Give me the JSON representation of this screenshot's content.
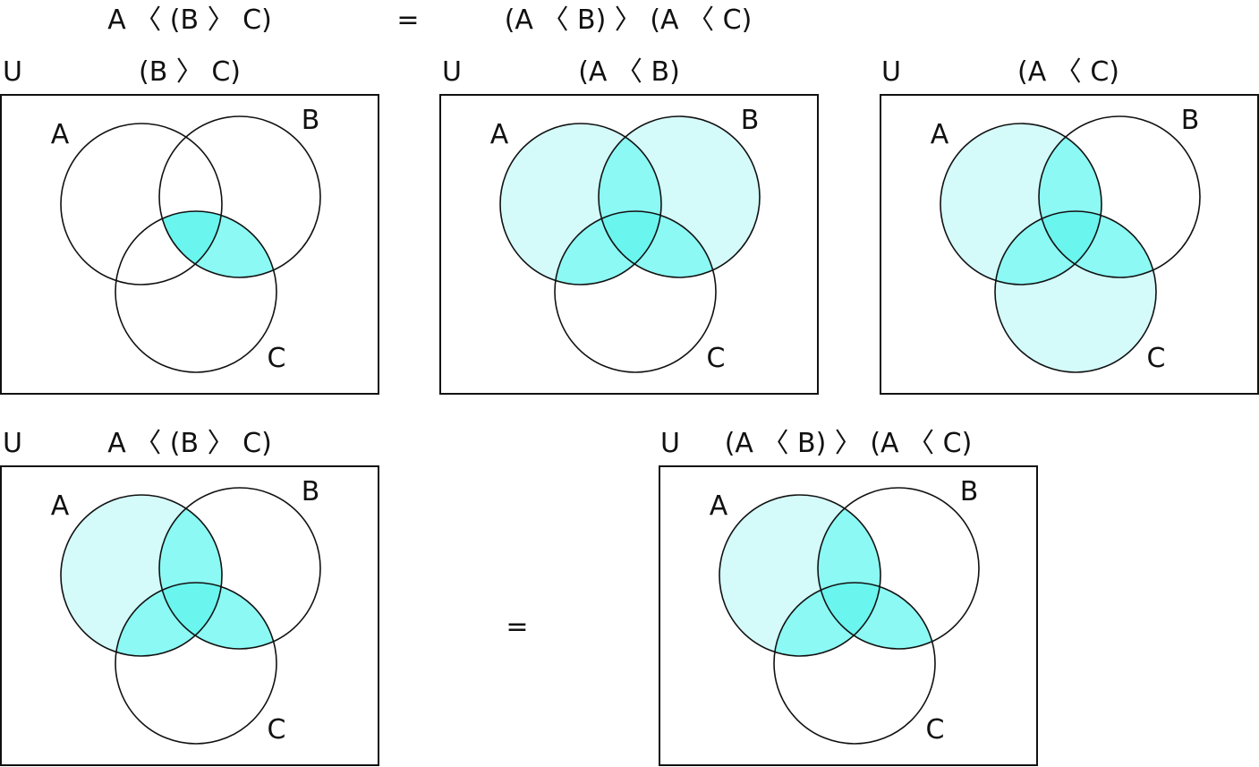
{
  "heading": {
    "left": "A 〈 (B 〉 C)",
    "equals": "=",
    "right": "(A 〈 B) 〉 (A 〈 C)"
  },
  "universe_label": "U",
  "set_labels": {
    "a": "A",
    "b": "B",
    "c": "C"
  },
  "panels": [
    {
      "id": "b-op-c",
      "title": "(B 〉 C)",
      "regions": {
        "a_only": "none",
        "b_only": "none",
        "c_only": "none",
        "ab_only": "none",
        "ac_only": "none",
        "bc_only": "dark",
        "abc": "dark"
      }
    },
    {
      "id": "a-op-b",
      "title": "(A 〈 B)",
      "regions": {
        "a_only": "light",
        "b_only": "light",
        "c_only": "none",
        "ab_only": "dark",
        "ac_only": "dark",
        "bc_only": "dark",
        "abc": "dark"
      }
    },
    {
      "id": "a-op-c",
      "title": "(A 〈 C)",
      "regions": {
        "a_only": "light",
        "b_only": "none",
        "c_only": "light",
        "ab_only": "dark",
        "ac_only": "dark",
        "bc_only": "dark",
        "abc": "dark"
      }
    },
    {
      "id": "result-left",
      "title": "A 〈 (B 〉 C)",
      "regions": {
        "a_only": "light",
        "b_only": "none",
        "c_only": "none",
        "ab_only": "dark",
        "ac_only": "dark",
        "bc_only": "dark",
        "abc": "dark"
      }
    },
    {
      "id": "result-right",
      "title": "(A 〈 B) 〉 (A 〈 C)",
      "regions": {
        "a_only": "light",
        "b_only": "none",
        "c_only": "none",
        "ab_only": "dark",
        "ac_only": "dark",
        "bc_only": "dark",
        "abc": "dark"
      }
    }
  ],
  "bottom_equals": "=",
  "colors": {
    "light": "#d4fafa",
    "dark": "#8cf9f4",
    "overlap": "#6af5ef",
    "stroke": "#111111"
  }
}
